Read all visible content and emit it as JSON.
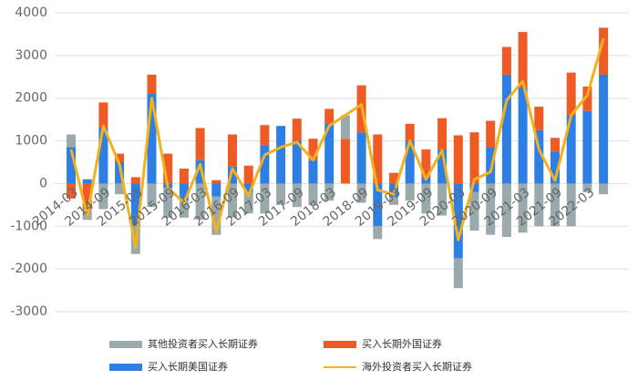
{
  "chart_data": {
    "type": "stacked-bar-line",
    "categories": [
      "2014-03",
      null,
      "2014-09",
      null,
      "2015-03",
      null,
      "2015-09",
      null,
      "2016-03",
      null,
      "2016-09",
      null,
      "2017-03",
      null,
      "2017-09",
      null,
      "2018-03",
      null,
      "2018-09",
      null,
      "2019-03",
      null,
      "2019-09",
      null,
      "2020-03",
      null,
      "2020-09",
      null,
      "2021-03",
      null,
      "2021-09",
      null,
      "2022-03",
      null
    ],
    "ylim": [
      -3000,
      4000
    ],
    "yticks": [
      -3000,
      -2000,
      -1000,
      0,
      1000,
      2000,
      3000,
      4000
    ],
    "grid": true,
    "series": [
      {
        "name": "买入长期美国证券",
        "color": "#2e7fe3",
        "kind": "bar",
        "values": [
          850,
          100,
          1300,
          500,
          -1000,
          2100,
          -100,
          -400,
          550,
          -300,
          400,
          -200,
          900,
          1350,
          1000,
          550,
          1400,
          0,
          1200,
          -1000,
          -300,
          1000,
          150,
          800,
          -1750,
          -200,
          850,
          2550,
          2250,
          1250,
          750,
          1600,
          1700,
          2550
        ]
      },
      {
        "name": "买入长期外国证券",
        "color": "#ef5b24",
        "kind": "bar",
        "values": [
          -350,
          -600,
          600,
          200,
          150,
          450,
          700,
          350,
          750,
          80,
          750,
          420,
          470,
          0,
          520,
          500,
          350,
          1050,
          1100,
          1150,
          250,
          400,
          650,
          730,
          1130,
          1200,
          620,
          650,
          1300,
          550,
          320,
          1000,
          570,
          1100
        ]
      },
      {
        "name": "其他投资者买入长期证券",
        "color": "#9aa9ac",
        "kind": "bar",
        "values": [
          300,
          -250,
          -600,
          -250,
          -650,
          -550,
          -700,
          -400,
          -850,
          -900,
          -800,
          -500,
          -700,
          -500,
          -550,
          -500,
          -400,
          550,
          -450,
          -300,
          -200,
          -400,
          -700,
          -750,
          -700,
          -900,
          -1200,
          -1250,
          -1150,
          -1000,
          -1000,
          -1000,
          -200,
          -250
        ]
      },
      {
        "name": "海外投资者买入长期证券",
        "color": "#f3b21d",
        "kind": "line",
        "values": [
          800,
          -750,
          1350,
          450,
          -1500,
          2000,
          -100,
          -450,
          450,
          -1120,
          350,
          -280,
          670,
          850,
          970,
          550,
          1350,
          1600,
          1850,
          -150,
          -250,
          1000,
          100,
          780,
          -1320,
          100,
          270,
          1950,
          2400,
          800,
          70,
          1600,
          2070,
          3400
        ]
      }
    ]
  }
}
